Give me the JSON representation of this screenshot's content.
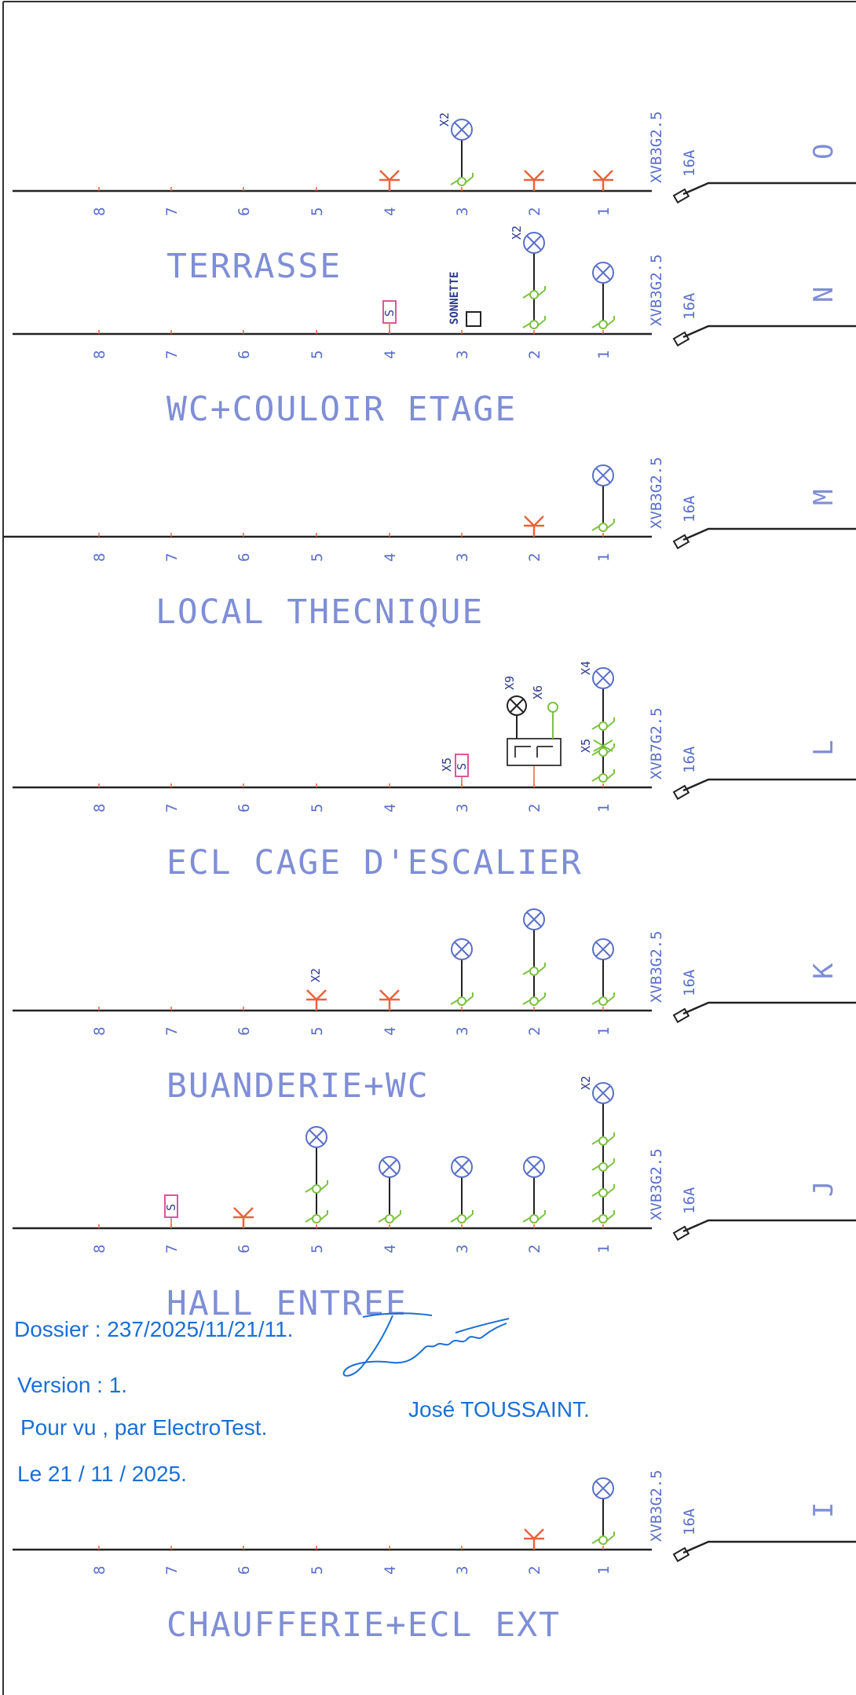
{
  "circuits": [
    {
      "id": "O",
      "title": "TERRASSE",
      "cable": "XVB3G2.5",
      "breaker": "16A",
      "numbers": [
        "1",
        "2",
        "3",
        "4",
        "5",
        "6",
        "7",
        "8"
      ],
      "items": [
        {
          "pos": 1,
          "type": "socket"
        },
        {
          "pos": 2,
          "type": "socket"
        },
        {
          "pos": 3,
          "type": "light",
          "qty": "X2",
          "switches": 1
        },
        {
          "pos": 4,
          "type": "socket"
        }
      ]
    },
    {
      "id": "N",
      "title": "WC+COULOIR ETAGE",
      "cable": "XVB3G2.5",
      "breaker": "16A",
      "numbers": [
        "1",
        "2",
        "3",
        "4",
        "5",
        "6",
        "7",
        "8"
      ],
      "items": [
        {
          "pos": 1,
          "type": "light",
          "switches": 1
        },
        {
          "pos": 2,
          "type": "light",
          "qty": "X2",
          "switches": 2
        },
        {
          "pos": 3,
          "type": "bell",
          "label": "SONNETTE"
        },
        {
          "pos": 4,
          "type": "s"
        }
      ]
    },
    {
      "id": "M",
      "title": "LOCAL THECNIQUE",
      "cable": "XVB3G2.5",
      "breaker": "16A",
      "numbers": [
        "1",
        "2",
        "3",
        "4",
        "5",
        "6",
        "7",
        "8"
      ],
      "items": [
        {
          "pos": 1,
          "type": "light",
          "switches": 1
        },
        {
          "pos": 2,
          "type": "socket"
        }
      ]
    },
    {
      "id": "L",
      "title": "ECL CAGE D'ESCALIER",
      "cable": "XVB7G2.5",
      "breaker": "16A",
      "numbers": [
        "1",
        "2",
        "3",
        "4",
        "5",
        "6",
        "7",
        "8"
      ],
      "items": [
        {
          "pos": 1,
          "type": "light",
          "qty": "X4",
          "switches": 3,
          "cross": "X5"
        },
        {
          "pos": 2,
          "type": "timer",
          "lamp_qty": "X9",
          "button_qty": "X6"
        },
        {
          "pos": 3,
          "type": "s",
          "qty": "X5"
        }
      ]
    },
    {
      "id": "K",
      "title": "BUANDERIE+WC",
      "cable": "XVB3G2.5",
      "breaker": "16A",
      "numbers": [
        "1",
        "2",
        "3",
        "4",
        "5",
        "6",
        "7",
        "8"
      ],
      "items": [
        {
          "pos": 1,
          "type": "light",
          "switches": 1
        },
        {
          "pos": 2,
          "type": "light",
          "switches": 2
        },
        {
          "pos": 3,
          "type": "light",
          "switches": 1
        },
        {
          "pos": 4,
          "type": "socket"
        },
        {
          "pos": 5,
          "type": "socket",
          "qty": "X2"
        }
      ]
    },
    {
      "id": "J",
      "title": "HALL ENTREE",
      "cable": "XVB3G2.5",
      "breaker": "16A",
      "numbers": [
        "1",
        "2",
        "3",
        "4",
        "5",
        "6",
        "7",
        "8"
      ],
      "items": [
        {
          "pos": 1,
          "type": "light",
          "qty": "X2",
          "switches": 4
        },
        {
          "pos": 2,
          "type": "light",
          "switches": 1
        },
        {
          "pos": 3,
          "type": "light",
          "switches": 1
        },
        {
          "pos": 4,
          "type": "light",
          "switches": 1
        },
        {
          "pos": 5,
          "type": "light",
          "switches": 2
        },
        {
          "pos": 6,
          "type": "socket"
        },
        {
          "pos": 7,
          "type": "s"
        }
      ]
    },
    {
      "id": "I",
      "title": "CHAUFFERIE+ECL EXT",
      "cable": "XVB3G2.5",
      "breaker": "16A",
      "numbers": [
        "1",
        "2",
        "3",
        "4",
        "5",
        "6",
        "7",
        "8"
      ],
      "items": [
        {
          "pos": 1,
          "type": "light",
          "switches": 1
        },
        {
          "pos": 2,
          "type": "socket"
        }
      ]
    }
  ],
  "stamp": {
    "dossier": "Dossier : 237/2025/11/21/11.",
    "version": "Version : 1.",
    "pour_vu": "Pour vu , par ElectroTest.",
    "date": "Le 21 / 11 / 2025.",
    "signatory": "José TOUSSAINT.",
    "signature_text": "Toussaint"
  },
  "colors": {
    "line": "#222222",
    "text": "#7f8ed6",
    "socket": "#e8643c",
    "switch": "#7cc242",
    "s_box": "#e0559a",
    "stamp": "#1b6fd6"
  }
}
